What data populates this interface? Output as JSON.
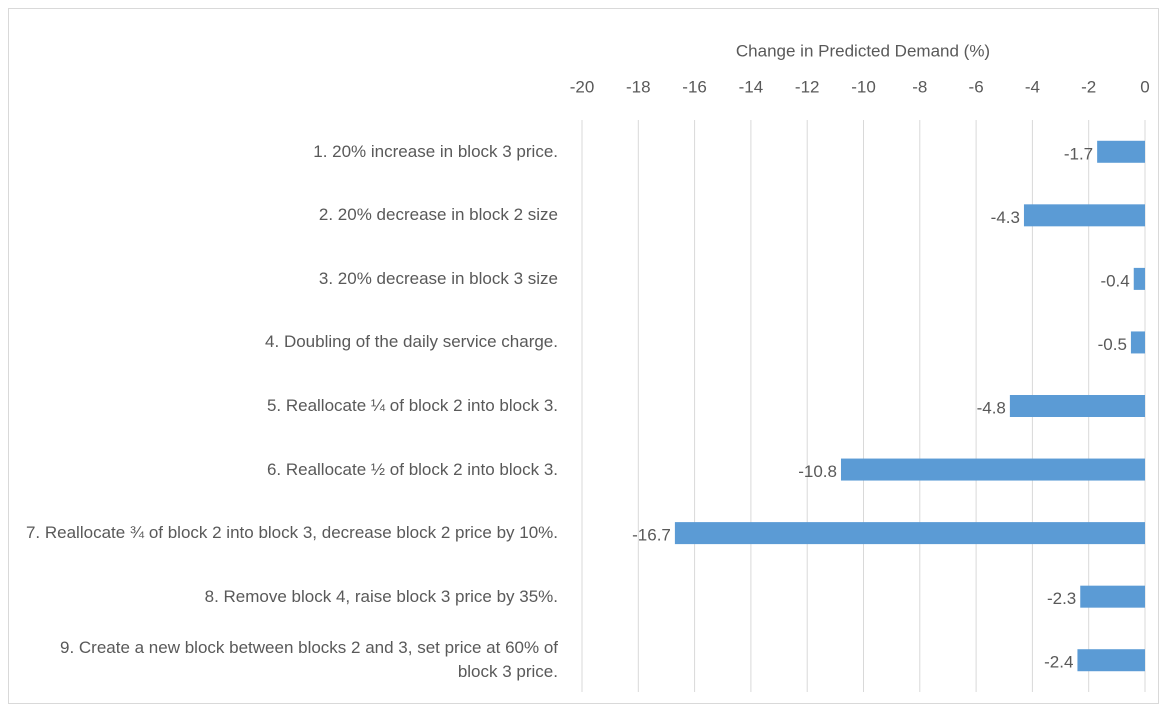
{
  "chart_data": {
    "type": "hbar",
    "x_label": "Change in Predicted Demand (%)",
    "categories": [
      "1. 20% increase in block 3 price.",
      "2. 20% decrease in block 2 size",
      "3. 20% decrease in block 3 size",
      "4. Doubling of the daily service charge.",
      "5. Reallocate ¼ of block 2 into block 3.",
      "6. Reallocate ½ of block 2 into block 3.",
      "7. Reallocate ¾ of block 2 into block 3, decrease block 2 price by 10%.",
      "8. Remove block 4, raise block 3 price by 35%.",
      "9. Create a new block between blocks 2 and 3, set price at 60% of block 3 price."
    ],
    "values": [
      -1.7,
      -4.3,
      -0.4,
      -0.5,
      -4.8,
      -10.8,
      -16.7,
      -2.3,
      -2.4
    ],
    "color": "#5b9bd5",
    "xlim": [
      -20,
      0
    ],
    "xticks": [
      -20,
      -18,
      -16,
      -14,
      -12,
      -10,
      -8,
      -6,
      -4,
      -2,
      0
    ],
    "grid": true,
    "data_labels": true
  }
}
